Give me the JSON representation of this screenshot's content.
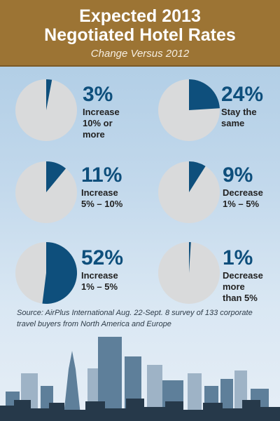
{
  "header": {
    "title_line1": "Expected 2013",
    "title_line2": "Negotiated Hotel Rates",
    "subtitle": "Change Versus 2012"
  },
  "chart_data": {
    "type": "pie",
    "title": "Expected 2013 Negotiated Hotel Rates",
    "subtitle": "Change Versus 2012",
    "categories": [
      "Increase 10% or more",
      "Stay the same",
      "Increase 5% – 10%",
      "Decrease 1% – 5%",
      "Increase 1% – 5%",
      "Decrease more than 5%"
    ],
    "values": [
      3,
      24,
      11,
      9,
      52,
      1
    ],
    "colors": {
      "slice": "#0e4f7c",
      "rest": "#d9dadb"
    }
  },
  "items": [
    {
      "pct": "3%",
      "label": "Increase\n10% or\nmore"
    },
    {
      "pct": "24%",
      "label": "Stay the\nsame"
    },
    {
      "pct": "11%",
      "label": "Increase\n5% – 10%"
    },
    {
      "pct": "9%",
      "label": "Decrease\n1% – 5%"
    },
    {
      "pct": "52%",
      "label": "Increase\n1% – 5%"
    },
    {
      "pct": "1%",
      "label": "Decrease\nmore\nthan 5%"
    }
  ],
  "source": "Source: AirPlus International Aug. 22-Sept. 8 survey of 133 corporate travel buyers from North America and Europe"
}
